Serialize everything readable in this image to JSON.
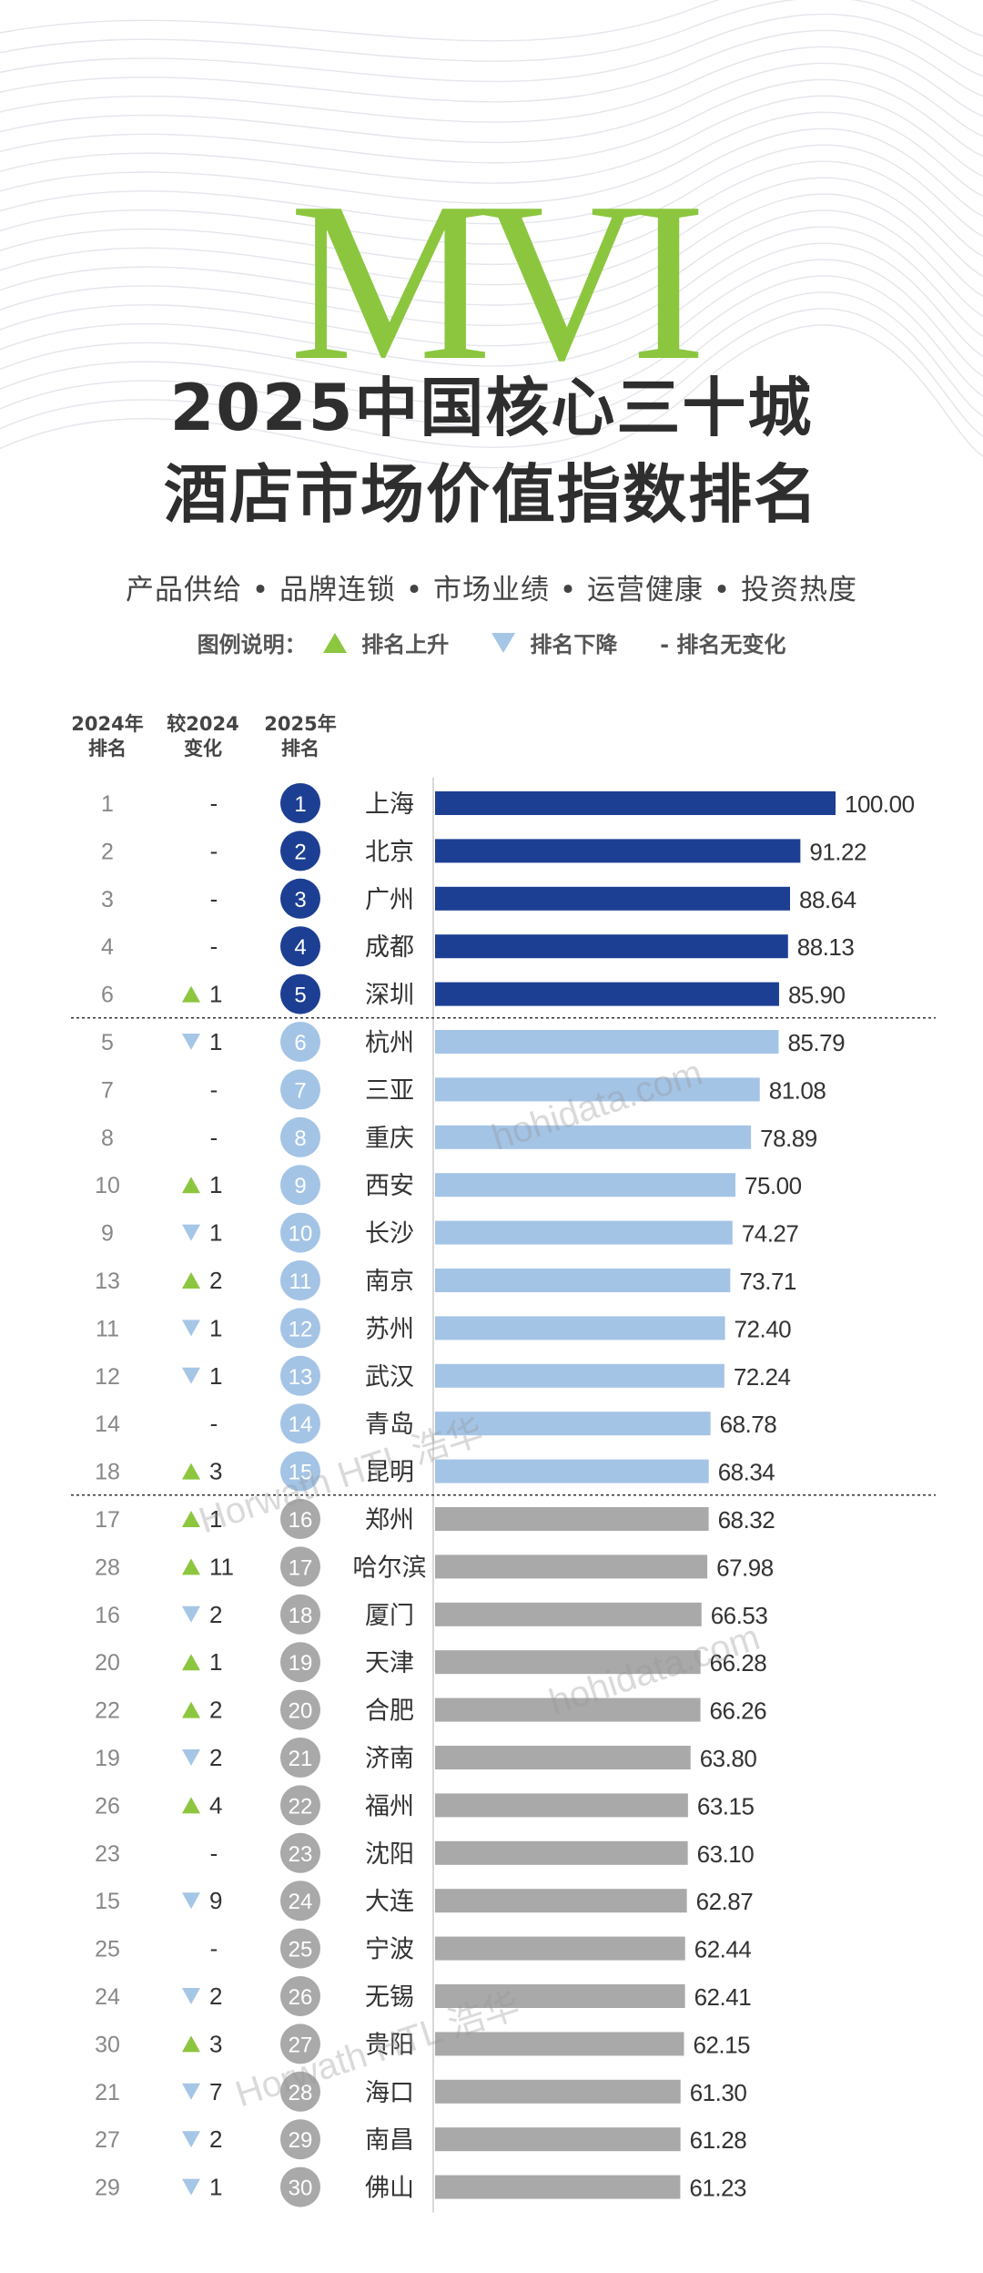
{
  "header": {
    "mark": "MVI",
    "title_line1": "2025中国核心三十城",
    "title_line2": "酒店市场价值指数排名",
    "subtitle": "产品供给 • 品牌连锁 • 市场业绩 • 运营健康 • 投资热度",
    "legend": {
      "title": "图例说明：",
      "up": "排名上升",
      "down": "排名下降",
      "same": "- 排名无变化"
    }
  },
  "columns": {
    "rank2024_line1": "2024年",
    "rank2024_line2": "排名",
    "change_line1": "较2024",
    "change_line2": "变化",
    "rank2025_line1": "2025年",
    "rank2025_line2": "排名"
  },
  "colors": {
    "tier1": "#1d3f93",
    "tier2": "#a4c4e6",
    "tier3": "#a9a9a9",
    "up": "#8cc63f",
    "down": "#a6c6e6",
    "mark": "#8cc63f"
  },
  "watermarks": [
    "hohidata.com",
    "hohidata.com",
    "Horwath HTL 浩华",
    "Horwath HTL 浩华"
  ],
  "chart_data": {
    "type": "bar",
    "orientation": "horizontal",
    "title": "2025中国核心三十城酒店市场价值指数排名",
    "xlim": [
      0,
      100
    ],
    "grid": false,
    "categories": [
      "上海",
      "北京",
      "广州",
      "成都",
      "深圳",
      "杭州",
      "三亚",
      "重庆",
      "西安",
      "长沙",
      "南京",
      "苏州",
      "武汉",
      "青岛",
      "昆明",
      "郑州",
      "哈尔滨",
      "厦门",
      "天津",
      "合肥",
      "济南",
      "福州",
      "沈阳",
      "大连",
      "宁波",
      "无锡",
      "贵阳",
      "海口",
      "南昌",
      "佛山"
    ],
    "values": [
      100.0,
      91.22,
      88.64,
      88.13,
      85.9,
      85.79,
      81.08,
      78.89,
      75.0,
      74.27,
      73.71,
      72.4,
      72.24,
      68.78,
      68.34,
      68.32,
      67.98,
      66.53,
      66.28,
      66.26,
      63.8,
      63.15,
      63.1,
      62.87,
      62.44,
      62.41,
      62.15,
      61.3,
      61.28,
      61.23
    ],
    "value_labels": [
      "100.00",
      "91.22",
      "88.64",
      "88.13",
      "85.90",
      "85.79",
      "81.08",
      "78.89",
      "75.00",
      "74.27",
      "73.71",
      "72.40",
      "72.24",
      "68.78",
      "68.34",
      "68.32",
      "67.98",
      "66.53",
      "66.28",
      "66.26",
      "63.80",
      "63.15",
      "63.10",
      "62.87",
      "62.44",
      "62.41",
      "62.15",
      "61.30",
      "61.28",
      "61.23"
    ],
    "rank_2025": [
      1,
      2,
      3,
      4,
      5,
      6,
      7,
      8,
      9,
      10,
      11,
      12,
      13,
      14,
      15,
      16,
      17,
      18,
      19,
      20,
      21,
      22,
      23,
      24,
      25,
      26,
      27,
      28,
      29,
      30
    ],
    "rank_2024": [
      1,
      2,
      3,
      4,
      6,
      5,
      7,
      8,
      10,
      9,
      13,
      11,
      12,
      14,
      18,
      17,
      28,
      16,
      20,
      22,
      19,
      26,
      23,
      15,
      25,
      24,
      30,
      21,
      27,
      29
    ],
    "change_direction": [
      "none",
      "none",
      "none",
      "none",
      "up",
      "down",
      "none",
      "none",
      "up",
      "down",
      "up",
      "down",
      "down",
      "none",
      "up",
      "up",
      "up",
      "down",
      "up",
      "up",
      "down",
      "up",
      "none",
      "down",
      "none",
      "down",
      "up",
      "down",
      "down",
      "down"
    ],
    "change_amount": [
      "-",
      "-",
      "-",
      "-",
      "1",
      "1",
      "-",
      "-",
      "1",
      "1",
      "2",
      "1",
      "1",
      "-",
      "3",
      "1",
      "11",
      "2",
      "1",
      "2",
      "2",
      "4",
      "-",
      "9",
      "-",
      "2",
      "3",
      "7",
      "2",
      "1"
    ],
    "tiers": [
      1,
      1,
      1,
      1,
      1,
      2,
      2,
      2,
      2,
      2,
      2,
      2,
      2,
      2,
      2,
      3,
      3,
      3,
      3,
      3,
      3,
      3,
      3,
      3,
      3,
      3,
      3,
      3,
      3,
      3
    ]
  }
}
